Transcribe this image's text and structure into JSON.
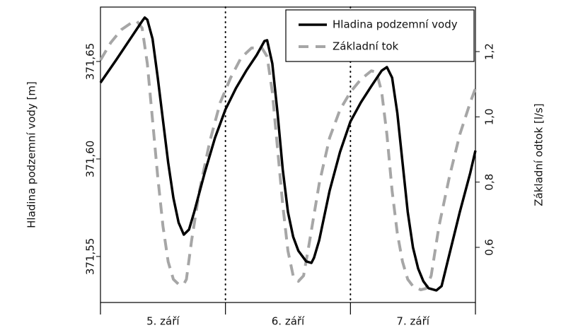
{
  "chart_data": {
    "type": "line",
    "y_label": "Hladina podzemní vody [m]",
    "y2_label": "Základní odtok [l/s]",
    "categories": [
      "5. září",
      "6. září",
      "7. září"
    ],
    "xlim": [
      0,
      72
    ],
    "xticks": [
      0,
      24,
      48,
      72
    ],
    "ylim": [
      371.5264,
      371.6779
    ],
    "yticks": [
      {
        "value": 371.55,
        "label": "371,55"
      },
      {
        "value": 371.6,
        "label": "371,60"
      },
      {
        "value": 371.65,
        "label": "371,65"
      }
    ],
    "y2lim": [
      0.431,
      1.3365
    ],
    "y2ticks": [
      {
        "value": 0.6,
        "label": "0,6"
      },
      {
        "value": 0.8,
        "label": "0,8"
      },
      {
        "value": 1.0,
        "label": "1,0"
      },
      {
        "value": 1.2,
        "label": "1,2"
      }
    ],
    "legend": "top-right",
    "series": [
      {
        "name": "Hladina podzemní vody",
        "color": "#000000",
        "dash": false,
        "x": [
          0,
          3,
          6,
          8,
          8.5,
          9,
          10,
          11,
          12,
          13,
          14,
          15,
          16,
          17,
          18,
          20,
          22,
          24,
          26,
          28,
          30,
          31.5,
          32,
          33,
          34,
          35,
          36,
          37,
          38,
          39.5,
          40.5,
          41,
          42,
          44,
          46,
          48,
          50,
          52,
          54,
          55,
          56,
          57,
          58,
          59,
          60,
          61,
          62,
          63,
          64.5,
          65.5,
          67,
          69,
          71,
          72
        ],
        "values": [
          371.6391,
          371.6507,
          371.6627,
          371.6707,
          371.6725,
          371.6714,
          371.6616,
          371.6417,
          371.6199,
          371.5982,
          371.5801,
          371.5674,
          371.5612,
          371.5638,
          371.5728,
          371.5928,
          371.6109,
          371.6254,
          371.6362,
          371.6453,
          371.6533,
          371.6605,
          371.6609,
          371.6489,
          371.6236,
          371.5946,
          371.5728,
          371.5601,
          371.5529,
          371.5475,
          371.5467,
          371.5493,
          371.5583,
          371.5837,
          371.6036,
          371.6192,
          371.629,
          371.6373,
          371.6453,
          371.6471,
          371.6417,
          371.6236,
          371.5982,
          371.5728,
          371.5547,
          371.5438,
          371.5373,
          371.5337,
          371.5326,
          371.5348,
          371.5511,
          371.5728,
          371.5928,
          371.6043
        ]
      },
      {
        "name": "Základní tok",
        "color": "#a6a6a6",
        "dash": true,
        "axis": "y2",
        "x": [
          0,
          2,
          4,
          6,
          7,
          8,
          9,
          10,
          11,
          12,
          13,
          14,
          15,
          16,
          16.5,
          17.5,
          19,
          21,
          23,
          25,
          27,
          29,
          31,
          32,
          33,
          34,
          35,
          36,
          37,
          38,
          39,
          40,
          42,
          44,
          46,
          48,
          50,
          52,
          53,
          54,
          55,
          56,
          57,
          58,
          59,
          60,
          61.5,
          62.5,
          63.5,
          65,
          67,
          69,
          71,
          72
        ],
        "values": [
          1.174,
          1.228,
          1.267,
          1.289,
          1.293,
          1.272,
          1.163,
          0.99,
          0.816,
          0.665,
          0.556,
          0.502,
          0.487,
          0.487,
          0.502,
          0.621,
          0.773,
          0.925,
          1.044,
          1.12,
          1.181,
          1.211,
          1.211,
          1.185,
          1.076,
          0.903,
          0.73,
          0.589,
          0.513,
          0.496,
          0.513,
          0.604,
          0.795,
          0.936,
          1.022,
          1.076,
          1.115,
          1.141,
          1.137,
          1.076,
          0.946,
          0.773,
          0.643,
          0.556,
          0.502,
          0.481,
          0.47,
          0.474,
          0.513,
          0.665,
          0.816,
          0.946,
          1.044,
          1.087
        ]
      }
    ]
  }
}
